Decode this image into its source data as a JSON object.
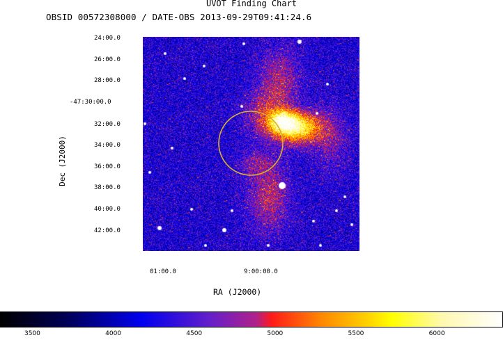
{
  "chart_data": {
    "type": "heatmap",
    "title": "UVOT Finding Chart",
    "subtitle": "OBSID 00572308000 / DATE-OBS 2013-09-29T09:41:24.6",
    "xlabel": "RA (J2000)",
    "ylabel": "Dec (J2000)",
    "dec_ticks": [
      "24:00.0",
      "26:00.0",
      "28:00.0",
      "-47:30:00.0",
      "32:00.0",
      "34:00.0",
      "36:00.0",
      "38:00.0",
      "40:00.0",
      "42:00.0"
    ],
    "ra_ticks": [
      "01:00.0",
      "9:00:00.0"
    ],
    "colorbar": {
      "ticks": [
        "3500",
        "4000",
        "4500",
        "5000",
        "5500",
        "6000"
      ],
      "range": [
        3300,
        6400
      ]
    },
    "annotations": [
      {
        "type": "circle",
        "color": "#d8b030"
      }
    ],
    "grid": false
  }
}
